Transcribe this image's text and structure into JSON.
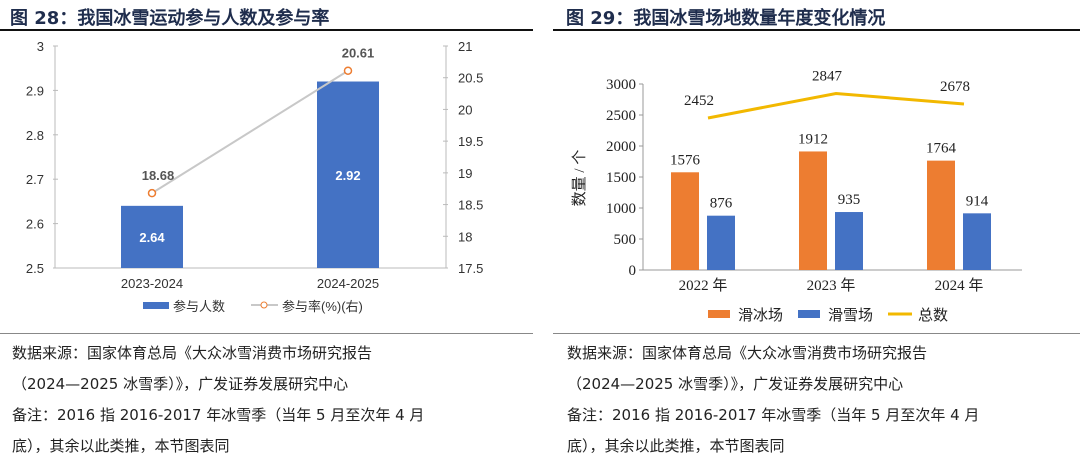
{
  "left": {
    "title": "图 28：我国冰雪运动参与人数及参与率",
    "footer": [
      "数据来源：国家体育总局《大众冰雪消费市场研究报告",
      "（2024—2025 冰雪季）》，广发证券发展研究中心",
      "备注：2016 指 2016-2017 年冰雪季（当年 5 月至次年 4 月",
      "底），其余以此类推，本节图表同"
    ]
  },
  "right": {
    "title": "图 29：我国冰雪场地数量年度变化情况",
    "footer": [
      "数据来源：国家体育总局《大众冰雪消费市场研究报告",
      "（2024—2025 冰雪季）》，广发证券发展研究中心",
      "备注：2016 指 2016-2017 年冰雪季（当年 5 月至次年 4 月",
      "底），其余以此类推，本节图表同"
    ]
  },
  "chart_data": [
    {
      "type": "bar",
      "categories": [
        "2023-2024",
        "2024-2025"
      ],
      "series": [
        {
          "name": "参与人数",
          "kind": "bar",
          "axis": "left",
          "values": [
            2.64,
            2.92
          ],
          "color": "#4472c4"
        },
        {
          "name": "参与率(%)(右)",
          "kind": "line",
          "axis": "right",
          "values": [
            18.68,
            20.61
          ],
          "color": "#c8c8c8",
          "marker": "#ed7d31"
        }
      ],
      "ylim": [
        2.5,
        3
      ],
      "yticks": [
        "2.5",
        "2.6",
        "2.7",
        "2.8",
        "2.9",
        "3"
      ],
      "y2lim": [
        17.5,
        21
      ],
      "y2ticks": [
        "17.5",
        "18",
        "18.5",
        "19",
        "19.5",
        "20",
        "20.5",
        "21"
      ],
      "labels_bar": [
        "2.64",
        "2.92"
      ],
      "labels_line": [
        "18.68",
        "20.61"
      ],
      "legend": "bottom"
    },
    {
      "type": "bar",
      "categories": [
        "2022 年",
        "2023 年",
        "2024 年"
      ],
      "series": [
        {
          "name": "滑冰场",
          "kind": "bar",
          "values": [
            1576,
            1912,
            1764
          ],
          "color": "#ed7d31"
        },
        {
          "name": "滑雪场",
          "kind": "bar",
          "values": [
            876,
            935,
            914
          ],
          "color": "#4472c4"
        },
        {
          "name": "总数",
          "kind": "line",
          "values": [
            2452,
            2847,
            2678
          ],
          "color": "#f2b800"
        }
      ],
      "ylabel": "数量 / 个",
      "ylim": [
        0,
        3000
      ],
      "yticks": [
        "0",
        "500",
        "1000",
        "1500",
        "2000",
        "2500",
        "3000"
      ],
      "legend": "bottom"
    }
  ]
}
